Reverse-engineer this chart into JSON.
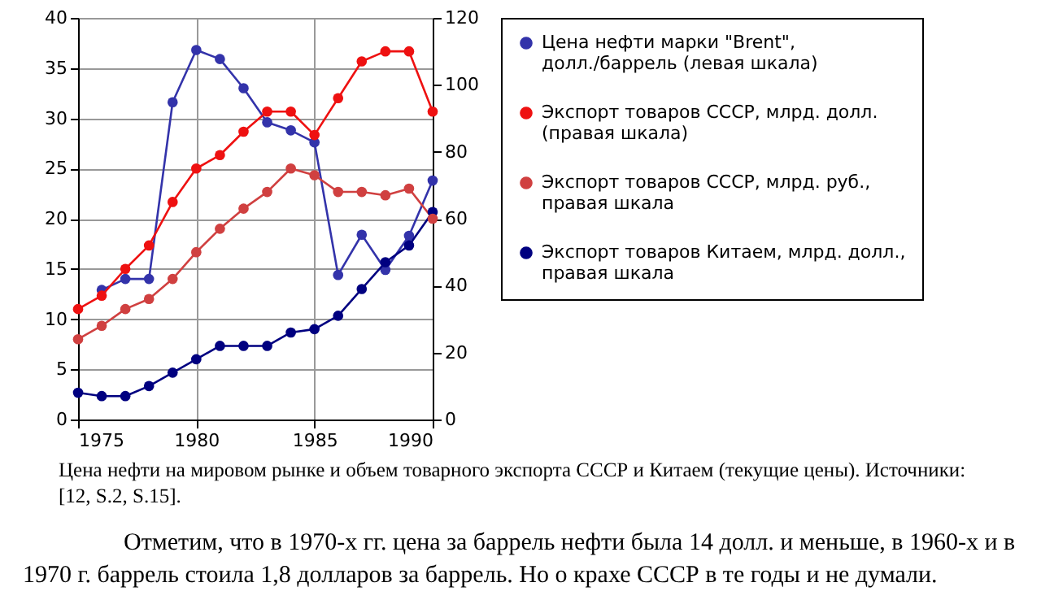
{
  "chart_data": {
    "type": "line",
    "xlim": [
      1975,
      1990
    ],
    "xticks": [
      1975,
      1980,
      1985,
      1990
    ],
    "ylim": [
      0,
      40
    ],
    "yticks": [
      0,
      5,
      10,
      15,
      20,
      25,
      30,
      35,
      40
    ],
    "y2lim": [
      0,
      120
    ],
    "y2ticks": [
      0,
      20,
      40,
      60,
      80,
      100,
      120
    ],
    "grid": true,
    "legend": "right",
    "marker": "circle",
    "series": [
      {
        "name": "Цена нефти марки \"Brent\", долл./баррель (левая шкала)",
        "color": "#3333aa",
        "x": [
          1976,
          1977,
          1978,
          1979,
          1980,
          1981,
          1982,
          1983,
          1984,
          1985,
          1986,
          1987,
          1988,
          1989,
          1990
        ],
        "values": [
          12.9,
          14,
          14,
          31.6,
          36.8,
          35.9,
          33,
          29.6,
          28.8,
          27.6,
          14.4,
          18.4,
          14.9,
          18.3,
          23.8
        ]
      },
      {
        "name": "Экспорт товаров СССР, млрд. долл. (правая шкала)",
        "color": "#ee1111",
        "axis": "y2",
        "x": [
          1975,
          1976,
          1977,
          1978,
          1979,
          1980,
          1981,
          1982,
          1983,
          1984,
          1985,
          1986,
          1987,
          1988,
          1989,
          1990
        ],
        "values": [
          33,
          37,
          45,
          52,
          65,
          75,
          79,
          86,
          92,
          92,
          85,
          96,
          107,
          110,
          110,
          92
        ]
      },
      {
        "name": "Экспорт товаров СССР, млрд. руб., правая шкала",
        "color": "#d04040",
        "axis": "y2",
        "x": [
          1975,
          1976,
          1977,
          1978,
          1979,
          1980,
          1981,
          1982,
          1983,
          1984,
          1985,
          1986,
          1987,
          1988,
          1989,
          1990
        ],
        "values": [
          24,
          28,
          33,
          36,
          42,
          50,
          57,
          63,
          68,
          75,
          73,
          68,
          68,
          67,
          69,
          60
        ]
      },
      {
        "name": "Экспорт товаров Китаем, млрд. долл., правая шкала",
        "color": "#000080",
        "axis": "y2",
        "x": [
          1975,
          1976,
          1977,
          1978,
          1979,
          1980,
          1981,
          1982,
          1983,
          1984,
          1985,
          1986,
          1987,
          1988,
          1989,
          1990
        ],
        "values": [
          8,
          7,
          7,
          10,
          14,
          18,
          22,
          22,
          22,
          26,
          27,
          31,
          39,
          47,
          52,
          62
        ]
      }
    ],
    "annotations": [
      "Цена нефти на мировом рынке и объем товарного экспорта СССР и Китаем (текущие цены). Источники: [12, S.2, S.15].",
      "Отметим, что в 1970-х гг. цена за баррель нефти была 14 долл. и меньше, в 1960-х и в 1970 г. баррель стоила 1,8 долларов за баррель. Но о крахе СССР в те годы и не думали."
    ]
  }
}
